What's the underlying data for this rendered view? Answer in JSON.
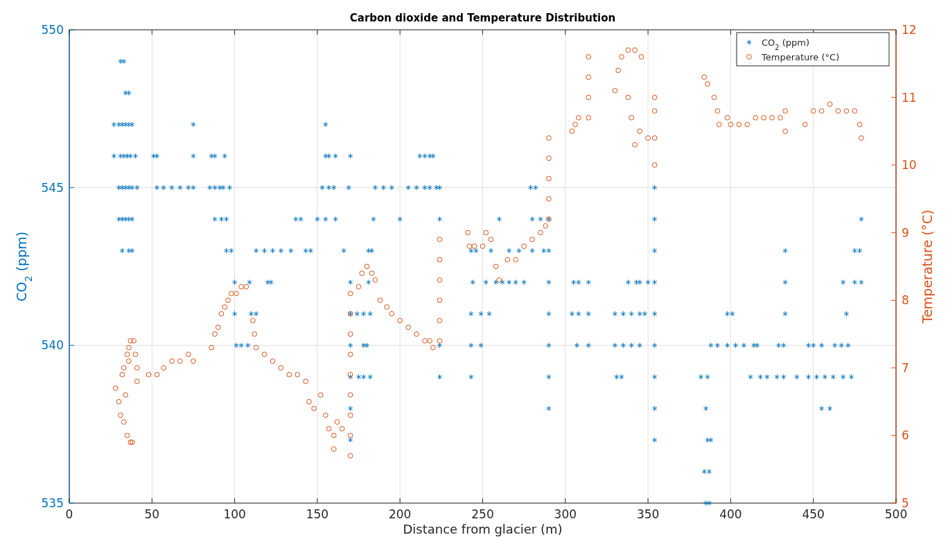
{
  "chart_data": {
    "type": "scatter",
    "title": "Carbon dioxide and Temperature Distribution",
    "xlabel": "Distance from glacier (m)",
    "ylabel": "CO$_{2}$ (ppm)",
    "y2label": "Temperature (°C)",
    "xlim": [
      0,
      500
    ],
    "xticks": [
      0,
      50,
      100,
      150,
      200,
      250,
      300,
      350,
      400,
      450,
      500
    ],
    "ylim": [
      535,
      550
    ],
    "yticks": [
      535,
      540,
      545,
      550
    ],
    "y2lim": [
      5,
      12
    ],
    "y2ticks": [
      5,
      6,
      7,
      8,
      9,
      10,
      11,
      12
    ],
    "grid": true,
    "legend": "top right",
    "series": [
      {
        "name": "CO$_{2}$ (ppm)",
        "color": "#0072bd",
        "marker": "cross",
        "x": [
          31,
          33,
          34,
          36,
          27,
          30,
          32,
          34,
          36,
          38,
          75,
          155,
          27,
          31,
          33,
          35,
          37,
          40,
          51,
          53,
          75,
          86,
          88,
          94,
          155,
          157,
          161,
          170,
          212,
          215,
          218,
          220,
          30,
          32,
          34,
          36,
          38,
          41,
          53,
          57,
          62,
          67,
          72,
          75,
          85,
          88,
          91,
          93,
          97,
          153,
          157,
          160,
          169,
          185,
          190,
          195,
          205,
          210,
          215,
          218,
          222,
          224,
          279,
          282,
          354,
          30,
          32,
          34,
          36,
          38,
          88,
          92,
          95,
          137,
          140,
          150,
          155,
          161,
          184,
          200,
          224,
          260,
          280,
          285,
          290,
          354,
          479,
          32,
          36,
          38,
          95,
          98,
          113,
          118,
          123,
          128,
          134,
          143,
          146,
          166,
          181,
          183,
          243,
          246,
          255,
          266,
          272,
          280,
          287,
          290,
          354,
          433,
          475,
          478,
          100,
          109,
          120,
          122,
          170,
          181,
          244,
          252,
          258,
          262,
          266,
          270,
          275,
          290,
          305,
          308,
          314,
          338,
          343,
          345,
          350,
          354,
          433,
          468,
          475,
          479,
          100,
          110,
          113,
          170,
          174,
          178,
          182,
          243,
          249,
          254,
          290,
          304,
          308,
          314,
          330,
          335,
          340,
          345,
          348,
          354,
          398,
          401,
          433,
          470,
          101,
          104,
          108,
          170,
          178,
          180,
          224,
          243,
          249,
          290,
          307,
          314,
          330,
          335,
          340,
          345,
          354,
          388,
          392,
          398,
          403,
          408,
          414,
          416,
          429,
          432,
          447,
          450,
          455,
          463,
          467,
          471,
          170,
          175,
          178,
          182,
          224,
          243,
          290,
          331,
          334,
          354,
          382,
          386,
          412,
          418,
          422,
          428,
          432,
          440,
          447,
          452,
          457,
          462,
          468,
          473,
          170,
          290,
          354,
          385,
          455,
          460,
          170,
          354,
          386,
          388,
          384,
          387,
          385,
          387
        ],
        "values": [
          549,
          549,
          548,
          548,
          547,
          547,
          547,
          547,
          547,
          547,
          547,
          547,
          546,
          546,
          546,
          546,
          546,
          546,
          546,
          546,
          546,
          546,
          546,
          546,
          546,
          546,
          546,
          546,
          546,
          546,
          546,
          546,
          545,
          545,
          545,
          545,
          545,
          545,
          545,
          545,
          545,
          545,
          545,
          545,
          545,
          545,
          545,
          545,
          545,
          545,
          545,
          545,
          545,
          545,
          545,
          545,
          545,
          545,
          545,
          545,
          545,
          545,
          545,
          545,
          545,
          544,
          544,
          544,
          544,
          544,
          544,
          544,
          544,
          544,
          544,
          544,
          544,
          544,
          544,
          544,
          544,
          544,
          544,
          544,
          544,
          544,
          544,
          543,
          543,
          543,
          543,
          543,
          543,
          543,
          543,
          543,
          543,
          543,
          543,
          543,
          543,
          543,
          543,
          543,
          543,
          543,
          543,
          543,
          543,
          543,
          543,
          543,
          543,
          543,
          542,
          542,
          542,
          542,
          542,
          542,
          542,
          542,
          542,
          542,
          542,
          542,
          542,
          542,
          542,
          542,
          542,
          542,
          542,
          542,
          542,
          542,
          542,
          542,
          542,
          542,
          541,
          541,
          541,
          541,
          541,
          541,
          541,
          541,
          541,
          541,
          541,
          541,
          541,
          541,
          541,
          541,
          541,
          541,
          541,
          541,
          541,
          541,
          541,
          541,
          540,
          540,
          540,
          540,
          540,
          540,
          540,
          540,
          540,
          540,
          540,
          540,
          540,
          540,
          540,
          540,
          540,
          540,
          540,
          540,
          540,
          540,
          540,
          540,
          540,
          540,
          540,
          540,
          540,
          540,
          540,
          540,
          539,
          539,
          539,
          539,
          539,
          539,
          539,
          539,
          539,
          539,
          539,
          539,
          539,
          539,
          539,
          539,
          539,
          539,
          539,
          539,
          539,
          539,
          539,
          539,
          538,
          538,
          538,
          538,
          538,
          538,
          537,
          537,
          537,
          537,
          536,
          536,
          535,
          535
        ]
      },
      {
        "name": "Temperature (°C)",
        "color": "#d95319",
        "marker": "circle",
        "axis": "y2",
        "x": [
          28,
          30,
          31,
          33,
          35,
          37,
          38,
          34,
          32,
          33,
          35,
          36,
          37,
          39,
          40,
          36,
          41,
          41,
          48,
          53,
          57,
          62,
          67,
          72,
          75,
          86,
          88,
          90,
          92,
          94,
          96,
          98,
          101,
          104,
          107,
          112,
          111,
          113,
          118,
          123,
          128,
          133,
          138,
          143,
          145,
          148,
          152,
          155,
          157,
          160,
          162,
          165,
          160,
          170,
          170,
          170,
          170,
          170,
          170,
          170,
          170,
          170,
          175,
          177,
          180,
          183,
          185,
          188,
          192,
          195,
          200,
          205,
          210,
          215,
          218,
          220,
          224,
          224,
          224,
          224,
          224,
          224,
          241,
          242,
          245,
          250,
          252,
          255,
          258,
          260,
          265,
          270,
          275,
          280,
          285,
          288,
          290,
          290,
          290,
          290,
          290,
          304,
          306,
          308,
          314,
          314,
          314,
          314,
          330,
          332,
          334,
          338,
          342,
          346,
          338,
          340,
          342,
          345,
          350,
          354,
          354,
          354,
          354,
          384,
          386,
          390,
          392,
          393,
          398,
          400,
          405,
          410,
          415,
          420,
          425,
          430,
          433,
          433,
          445,
          450,
          455,
          460,
          465,
          470,
          475,
          478,
          479
        ],
        "values": [
          6.7,
          6.5,
          6.3,
          6.2,
          6.0,
          5.9,
          5.9,
          6.6,
          6.9,
          7.0,
          7.2,
          7.3,
          7.4,
          7.4,
          7.2,
          7.1,
          7.0,
          6.8,
          6.9,
          6.9,
          7.0,
          7.1,
          7.1,
          7.2,
          7.1,
          7.3,
          7.5,
          7.6,
          7.8,
          7.9,
          8.0,
          8.1,
          8.1,
          8.2,
          8.2,
          7.5,
          7.7,
          7.3,
          7.2,
          7.1,
          7.0,
          6.9,
          6.9,
          6.8,
          6.5,
          6.4,
          6.6,
          6.3,
          6.1,
          6.0,
          6.2,
          6.1,
          5.8,
          5.7,
          6.0,
          6.3,
          6.6,
          6.9,
          7.2,
          7.5,
          7.8,
          8.1,
          8.2,
          8.4,
          8.5,
          8.4,
          8.3,
          8.0,
          7.9,
          7.8,
          7.7,
          7.6,
          7.5,
          7.4,
          7.4,
          7.3,
          7.4,
          7.7,
          8.0,
          8.3,
          8.6,
          8.9,
          9.0,
          8.8,
          8.8,
          8.8,
          9.0,
          8.9,
          8.5,
          8.3,
          8.6,
          8.6,
          8.8,
          8.9,
          9.0,
          9.1,
          9.2,
          9.5,
          9.8,
          10.1,
          10.4,
          10.5,
          10.6,
          10.7,
          10.7,
          11.0,
          11.3,
          11.6,
          11.1,
          11.4,
          11.6,
          11.7,
          11.7,
          11.6,
          11.0,
          10.7,
          10.3,
          10.5,
          10.4,
          10.4,
          10.8,
          11.0,
          10.0,
          11.3,
          11.2,
          11.0,
          10.8,
          10.6,
          10.7,
          10.6,
          10.6,
          10.6,
          10.7,
          10.7,
          10.7,
          10.7,
          10.8,
          10.5,
          10.6,
          10.8,
          10.8,
          10.9,
          10.8,
          10.8,
          10.8,
          10.6,
          10.4
        ]
      }
    ]
  }
}
